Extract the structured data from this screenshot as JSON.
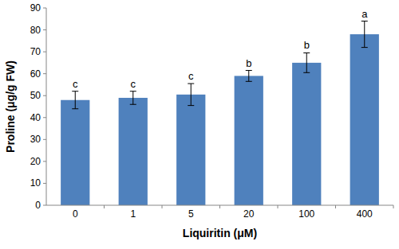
{
  "chart_data": {
    "type": "bar",
    "x_label": "Liquiritin (μM)",
    "y_label": "Proline (μg/g FW)",
    "categories": [
      "0",
      "1",
      "5",
      "20",
      "100",
      "400"
    ],
    "values": [
      48,
      49,
      50.5,
      59,
      65,
      78
    ],
    "errors": [
      4,
      3,
      5,
      2.5,
      4.5,
      6
    ],
    "annotations": [
      "c",
      "c",
      "c",
      "b",
      "b",
      "a"
    ],
    "color": "#4f81bd",
    "ylim": [
      0,
      90
    ],
    "yticks": [
      0,
      10,
      20,
      30,
      40,
      50,
      60,
      70,
      80,
      90
    ],
    "grid": false
  }
}
